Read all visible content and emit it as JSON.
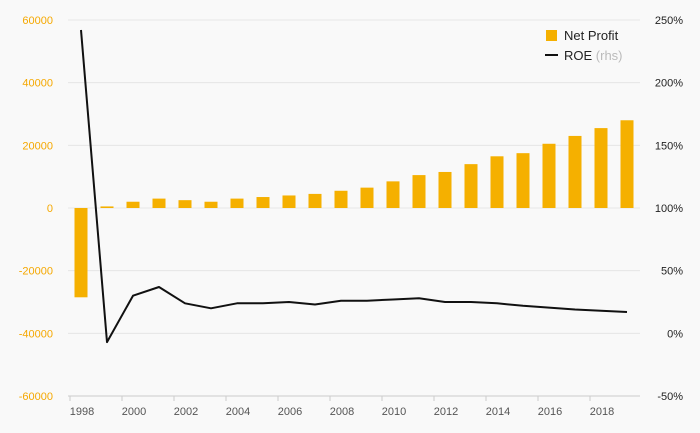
{
  "colors": {
    "bar": "#f5b000",
    "line": "#111111",
    "left_ticks": "#f5a800",
    "grid": "#e6e6e6"
  },
  "legend": {
    "items": [
      {
        "label": "Net Profit",
        "sub": "",
        "marker": "bar"
      },
      {
        "label": "ROE",
        "sub": "(rhs)",
        "marker": "line"
      }
    ],
    "position": "top-right"
  },
  "chart_data": {
    "type": "bar+line",
    "x": [
      1998,
      1999,
      2000,
      2001,
      2002,
      2003,
      2004,
      2005,
      2006,
      2007,
      2008,
      2009,
      2010,
      2011,
      2012,
      2013,
      2014,
      2015,
      2016,
      2017,
      2018,
      2019
    ],
    "x_tick_labels": [
      "1998",
      "2000",
      "2002",
      "2004",
      "2006",
      "2008",
      "2010",
      "2012",
      "2014",
      "2016",
      "2018"
    ],
    "series": [
      {
        "name": "Net Profit",
        "type": "bar",
        "axis": "left",
        "values": [
          -28500,
          500,
          2000,
          3000,
          2500,
          2000,
          3000,
          3500,
          4000,
          4500,
          5500,
          6500,
          8500,
          10500,
          11500,
          14000,
          16500,
          17500,
          20500,
          23000,
          25500,
          28000
        ]
      },
      {
        "name": "ROE",
        "type": "line",
        "axis": "right",
        "values": [
          2.42,
          -0.07,
          0.3,
          0.37,
          0.24,
          0.2,
          0.24,
          0.24,
          0.25,
          0.23,
          0.26,
          0.26,
          0.27,
          0.28,
          0.25,
          0.25,
          0.24,
          0.22,
          0.205,
          0.19,
          0.18,
          0.17
        ]
      }
    ],
    "left_axis": {
      "range": [
        -60000,
        60000
      ],
      "ticks": [
        "60000",
        "40000",
        "20000",
        "0",
        "-20000",
        "-40000",
        "-60000"
      ]
    },
    "right_axis": {
      "range": [
        -0.5,
        2.5
      ],
      "ticks": [
        "250%",
        "200%",
        "150%",
        "100%",
        "50%",
        "0%",
        "-50%"
      ]
    },
    "grid": true
  }
}
